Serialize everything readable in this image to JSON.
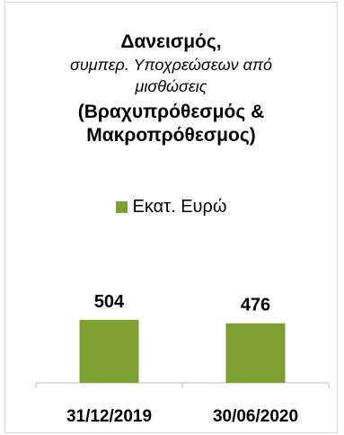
{
  "chart_data": {
    "type": "bar",
    "title": "Δανεισμός,",
    "subtitle": [
      "συμπερ. Υποχρεώσεων από",
      "μισθώσεις"
    ],
    "title2": [
      "(Βραχυπρόθεσμός &",
      "Μακροπρόθεσμος)"
    ],
    "categories": [
      "31/12/2019",
      "30/06/2020"
    ],
    "series": [
      {
        "name": "Εκατ. Ευρώ",
        "values": [
          504,
          476
        ],
        "labels": [
          "504",
          "476"
        ],
        "color": "#7ea032"
      }
    ],
    "ylim": [
      0,
      1300
    ],
    "legend": "top",
    "grid": false
  }
}
